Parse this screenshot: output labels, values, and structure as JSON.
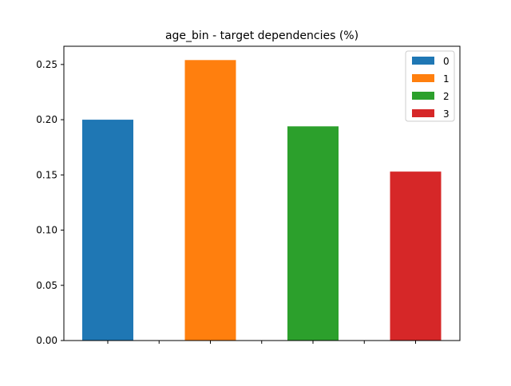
{
  "chart_data": {
    "type": "bar",
    "title": "age_bin - target dependencies (%)",
    "xlabel": "",
    "ylabel": "",
    "ylim": [
      0,
      0.2665
    ],
    "yticks": [
      0.0,
      0.05,
      0.1,
      0.15,
      0.2,
      0.25
    ],
    "ytick_labels": [
      "0.00",
      "0.05",
      "0.10",
      "0.15",
      "0.20",
      "0.25"
    ],
    "grid": false,
    "legend_position": "top-right",
    "series": [
      {
        "name": "0",
        "color": "#1f77b4",
        "value": 0.2
      },
      {
        "name": "1",
        "color": "#ff7f0e",
        "value": 0.254
      },
      {
        "name": "2",
        "color": "#2ca02c",
        "value": 0.194
      },
      {
        "name": "3",
        "color": "#d62728",
        "value": 0.153
      }
    ]
  }
}
